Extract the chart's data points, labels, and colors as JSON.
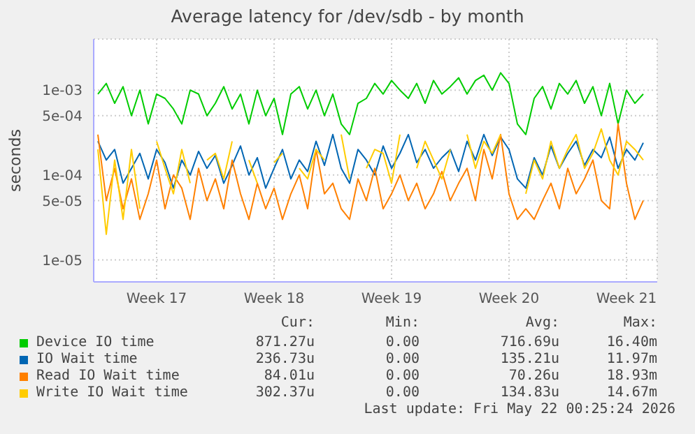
{
  "chart_data": {
    "type": "line",
    "title": "Average latency for /dev/sdb - by month",
    "ylabel": "seconds",
    "log": "y",
    "grid": true,
    "legend": "bottom",
    "marker": "none",
    "line_style": "solid",
    "xlim": [
      "2026-04-19T18:00",
      "2026-05-23T08:00"
    ],
    "xticks": [
      {
        "value": "2026-04-23T12:00",
        "label": "Week 17"
      },
      {
        "value": "2026-04-30T12:00",
        "label": "Week 18"
      },
      {
        "value": "2026-05-07T12:00",
        "label": "Week 19"
      },
      {
        "value": "2026-05-14T12:00",
        "label": "Week 20"
      },
      {
        "value": "2026-05-21T12:00",
        "label": "Week 21"
      }
    ],
    "ylim": [
      5.5e-06,
      0.004
    ],
    "yticks": [
      {
        "value": 1e-05,
        "label": "1e-05"
      },
      {
        "value": 5e-05,
        "label": "5e-05"
      },
      {
        "value": 0.0001,
        "label": "1e-04"
      },
      {
        "value": 0.0005,
        "label": "5e-04"
      },
      {
        "value": 0.001,
        "label": "1e-03"
      }
    ],
    "x": [
      "2026-04-20T00:00",
      "2026-04-20T12:00",
      "2026-04-21T00:00",
      "2026-04-21T12:00",
      "2026-04-22T00:00",
      "2026-04-22T12:00",
      "2026-04-23T00:00",
      "2026-04-23T12:00",
      "2026-04-24T00:00",
      "2026-04-24T12:00",
      "2026-04-25T00:00",
      "2026-04-25T12:00",
      "2026-04-26T00:00",
      "2026-04-26T12:00",
      "2026-04-27T00:00",
      "2026-04-27T12:00",
      "2026-04-28T00:00",
      "2026-04-28T12:00",
      "2026-04-29T00:00",
      "2026-04-29T12:00",
      "2026-04-30T00:00",
      "2026-04-30T12:00",
      "2026-05-01T00:00",
      "2026-05-01T12:00",
      "2026-05-02T00:00",
      "2026-05-02T12:00",
      "2026-05-03T00:00",
      "2026-05-03T12:00",
      "2026-05-04T00:00",
      "2026-05-04T12:00",
      "2026-05-05T00:00",
      "2026-05-05T12:00",
      "2026-05-06T00:00",
      "2026-05-06T12:00",
      "2026-05-07T00:00",
      "2026-05-07T12:00",
      "2026-05-08T00:00",
      "2026-05-08T12:00",
      "2026-05-09T00:00",
      "2026-05-09T12:00",
      "2026-05-10T00:00",
      "2026-05-10T12:00",
      "2026-05-11T00:00",
      "2026-05-11T12:00",
      "2026-05-12T00:00",
      "2026-05-12T12:00",
      "2026-05-13T00:00",
      "2026-05-13T12:00",
      "2026-05-14T00:00",
      "2026-05-14T12:00",
      "2026-05-15T00:00",
      "2026-05-15T12:00",
      "2026-05-16T00:00",
      "2026-05-16T12:00",
      "2026-05-17T00:00",
      "2026-05-17T12:00",
      "2026-05-18T00:00",
      "2026-05-18T12:00",
      "2026-05-19T00:00",
      "2026-05-19T12:00",
      "2026-05-20T00:00",
      "2026-05-20T12:00",
      "2026-05-21T00:00",
      "2026-05-21T12:00",
      "2026-05-22T00:00",
      "2026-05-22T12:00"
    ],
    "series": [
      {
        "name": "Device IO time",
        "color": "#00cc00",
        "values": [
          0.0009,
          0.0012,
          0.0007,
          0.0011,
          0.0005,
          0.001,
          0.0004,
          0.0009,
          0.0008,
          0.0006,
          0.0004,
          0.001,
          0.0009,
          0.0005,
          0.0007,
          0.0011,
          0.0006,
          0.0009,
          0.0004,
          0.001,
          0.0005,
          0.0008,
          0.0003,
          0.0009,
          0.0011,
          0.0006,
          0.001,
          0.0005,
          0.0009,
          0.0004,
          0.0003,
          0.0007,
          0.0008,
          0.0012,
          0.0009,
          0.0013,
          0.001,
          0.0008,
          0.0012,
          0.0007,
          0.0013,
          0.0009,
          0.0011,
          0.0014,
          0.0009,
          0.0013,
          0.0015,
          0.001,
          0.0016,
          0.0012,
          0.0004,
          0.0003,
          0.0008,
          0.0011,
          0.0006,
          0.0012,
          0.0009,
          0.0013,
          0.0007,
          0.0011,
          0.0005,
          0.0012,
          0.0004,
          0.001,
          0.0007,
          0.0009
        ]
      },
      {
        "name": "IO Wait time",
        "color": "#0066b3",
        "values": [
          0.00025,
          0.00015,
          0.0002,
          8e-05,
          0.00012,
          0.00018,
          9e-05,
          0.0002,
          0.00014,
          7e-05,
          0.00015,
          0.0001,
          0.00019,
          0.00012,
          0.00017,
          8e-05,
          0.00013,
          0.00022,
          0.0001,
          0.00016,
          7e-05,
          0.00012,
          0.0002,
          9e-05,
          0.00015,
          0.00011,
          0.00025,
          0.00013,
          0.0003,
          0.00012,
          8e-05,
          0.0002,
          0.00015,
          0.0001,
          0.00022,
          0.00012,
          0.00018,
          0.0003,
          0.00014,
          0.0002,
          0.00012,
          0.00016,
          0.0002,
          0.00011,
          0.00025,
          0.00015,
          0.0003,
          0.00017,
          0.00028,
          0.0002,
          9e-05,
          7e-05,
          0.00016,
          0.0001,
          0.00022,
          0.00012,
          0.00018,
          0.00025,
          0.00013,
          0.0002,
          0.00016,
          0.00028,
          0.00012,
          0.0002,
          0.00015,
          0.00024
        ]
      },
      {
        "name": "Read IO Wait time",
        "color": "#ff8000",
        "values": [
          0.0003,
          5e-05,
          0.00012,
          4e-05,
          9e-05,
          3e-05,
          6e-05,
          0.00015,
          4e-05,
          0.0001,
          7e-05,
          3e-05,
          0.00012,
          5e-05,
          9e-05,
          4e-05,
          0.00015,
          6e-05,
          3e-05,
          8e-05,
          4e-05,
          7e-05,
          3e-05,
          6e-05,
          0.0001,
          4e-05,
          0.0002,
          6e-05,
          8e-05,
          4e-05,
          3e-05,
          9e-05,
          5e-05,
          0.00012,
          4e-05,
          6e-05,
          0.0001,
          5e-05,
          8e-05,
          4e-05,
          6e-05,
          0.00011,
          5e-05,
          8e-05,
          0.00012,
          5e-05,
          0.0002,
          9e-05,
          0.0003,
          6e-05,
          3e-05,
          4e-05,
          3e-05,
          5e-05,
          8e-05,
          4e-05,
          0.00012,
          6e-05,
          9e-05,
          0.00015,
          5e-05,
          4e-05,
          0.0004,
          8e-05,
          3e-05,
          5e-05
        ]
      },
      {
        "name": "Write IO Wait time",
        "color": "#ffcc00",
        "values": [
          0.0002,
          2e-05,
          0.00015,
          3e-05,
          0.0002,
          4e-05,
          null,
          0.00025,
          0.00012,
          6e-05,
          0.0002,
          8e-05,
          null,
          0.00015,
          0.00018,
          9e-05,
          0.00025,
          null,
          0.00015,
          8e-05,
          null,
          0.00014,
          0.00018,
          null,
          0.00012,
          9e-05,
          0.0002,
          0.00015,
          null,
          0.0003,
          9e-05,
          null,
          0.00012,
          0.0002,
          0.00018,
          8e-05,
          0.0003,
          null,
          0.00012,
          0.00025,
          0.00015,
          9e-05,
          0.0002,
          null,
          0.0003,
          0.00012,
          0.00025,
          0.00018,
          0.0003,
          null,
          null,
          6e-05,
          0.00015,
          9e-05,
          0.00025,
          0.00012,
          0.0002,
          0.0003,
          0.00012,
          0.00018,
          0.00035,
          0.00015,
          0.0001,
          0.00025,
          0.0002,
          0.00015
        ]
      }
    ],
    "annotations": [
      "Cur:",
      "Min:",
      "Avg:",
      "Max:",
      "871.27u",
      "0.00",
      "716.69u",
      "16.40m",
      "236.73u",
      "0.00",
      "135.21u",
      "11.97m",
      "84.01u",
      "0.00",
      "70.26u",
      "18.93m",
      "302.37u",
      "0.00",
      "134.83u",
      "14.67m",
      "Last update: Fri May 22 00:25:24 2026"
    ]
  }
}
